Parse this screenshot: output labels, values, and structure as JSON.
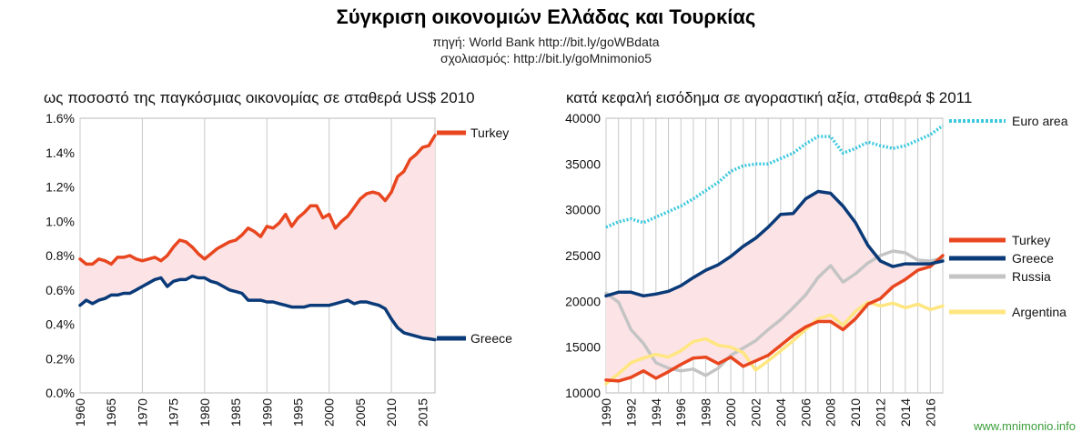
{
  "header": {
    "title": "Σύγκριση οικονομιών Ελλάδας και Τουρκίας",
    "source": "πηγή: World Bank http://bit.ly/goWBdata",
    "comments": "σχολιασμός: http://bit.ly/goMnimonio5"
  },
  "watermark": "www.mnimonio.info",
  "colors": {
    "turkey": "#e8461f",
    "greece": "#0a3a78",
    "russia": "#c4c4c4",
    "argentina": "#ffe680",
    "euro_area": "#3cc8de",
    "gap_fill": "#fce3e5",
    "grid": "#c8c8c8"
  },
  "chart_data": [
    {
      "type": "line",
      "title": "ως ποσοστό της παγκόσμιας οικονομίας σε σταθερά US$ 2010",
      "xlim": [
        1960,
        2017
      ],
      "ylim": [
        0,
        1.6
      ],
      "y_ticks": [
        "0.0%",
        "0.2%",
        "0.4%",
        "0.6%",
        "0.8%",
        "1.0%",
        "1.2%",
        "1.4%",
        "1.6%"
      ],
      "x_ticks": [
        "1960",
        "1965",
        "1970",
        "1975",
        "1980",
        "1985",
        "1990",
        "1995",
        "2000",
        "2005",
        "2010",
        "2015"
      ],
      "grid": "vertical every 10 years, horizontal none",
      "legend": "right-side labels",
      "fill_between": [
        "Turkey",
        "Greece"
      ],
      "x": [
        1960,
        1961,
        1962,
        1963,
        1964,
        1965,
        1966,
        1967,
        1968,
        1969,
        1970,
        1971,
        1972,
        1973,
        1974,
        1975,
        1976,
        1977,
        1978,
        1979,
        1980,
        1981,
        1982,
        1983,
        1984,
        1985,
        1986,
        1987,
        1988,
        1989,
        1990,
        1991,
        1992,
        1993,
        1994,
        1995,
        1996,
        1997,
        1998,
        1999,
        2000,
        2001,
        2002,
        2003,
        2004,
        2005,
        2006,
        2007,
        2008,
        2009,
        2010,
        2011,
        2012,
        2013,
        2014,
        2015,
        2016,
        2017
      ],
      "series": [
        {
          "name": "Turkey",
          "color": "#e8461f",
          "values": [
            0.78,
            0.75,
            0.75,
            0.78,
            0.77,
            0.75,
            0.79,
            0.79,
            0.8,
            0.78,
            0.77,
            0.78,
            0.79,
            0.77,
            0.8,
            0.85,
            0.89,
            0.88,
            0.85,
            0.81,
            0.78,
            0.81,
            0.84,
            0.86,
            0.88,
            0.89,
            0.92,
            0.96,
            0.94,
            0.91,
            0.97,
            0.96,
            0.99,
            1.04,
            0.97,
            1.02,
            1.05,
            1.09,
            1.09,
            1.02,
            1.04,
            0.96,
            1.0,
            1.03,
            1.08,
            1.13,
            1.16,
            1.17,
            1.16,
            1.12,
            1.17,
            1.26,
            1.29,
            1.36,
            1.39,
            1.43,
            1.44,
            1.5
          ]
        },
        {
          "name": "Greece",
          "color": "#0a3a78",
          "values": [
            0.51,
            0.54,
            0.52,
            0.54,
            0.55,
            0.57,
            0.57,
            0.58,
            0.58,
            0.6,
            0.62,
            0.64,
            0.66,
            0.67,
            0.62,
            0.65,
            0.66,
            0.66,
            0.68,
            0.67,
            0.67,
            0.65,
            0.64,
            0.62,
            0.6,
            0.59,
            0.58,
            0.54,
            0.54,
            0.54,
            0.53,
            0.53,
            0.52,
            0.51,
            0.5,
            0.5,
            0.5,
            0.51,
            0.51,
            0.51,
            0.51,
            0.52,
            0.53,
            0.54,
            0.52,
            0.53,
            0.53,
            0.52,
            0.51,
            0.49,
            0.43,
            0.38,
            0.35,
            0.34,
            0.33,
            0.32,
            0.315,
            0.31
          ]
        }
      ]
    },
    {
      "type": "line",
      "title": "κατά κεφαλή εισόδημα σε αγοραστική αξία, σταθερά $ 2011",
      "xlim": [
        1990,
        2017
      ],
      "ylim": [
        10000,
        40000
      ],
      "y_ticks": [
        "10000",
        "15000",
        "20000",
        "25000",
        "30000",
        "35000",
        "40000"
      ],
      "x_ticks": [
        "1990",
        "1992",
        "1994",
        "1996",
        "1998",
        "2000",
        "2002",
        "2004",
        "2006",
        "2008",
        "2010",
        "2012",
        "2014",
        "2016"
      ],
      "grid": "vertical every year, horizontal none",
      "legend": "right-side labels",
      "fill_between": [
        "Turkey",
        "Greece"
      ],
      "x": [
        1990,
        1991,
        1992,
        1993,
        1994,
        1995,
        1996,
        1997,
        1998,
        1999,
        2000,
        2001,
        2002,
        2003,
        2004,
        2005,
        2006,
        2007,
        2008,
        2009,
        2010,
        2011,
        2012,
        2013,
        2014,
        2015,
        2016,
        2017
      ],
      "series": [
        {
          "name": "Euro area",
          "color": "#3cc8de",
          "dash": "dotted",
          "values": [
            28100,
            28700,
            29000,
            28600,
            29200,
            29800,
            30400,
            31200,
            32100,
            33000,
            34200,
            34800,
            35000,
            35000,
            35600,
            36200,
            37200,
            38000,
            38000,
            36200,
            36700,
            37400,
            37000,
            36700,
            37000,
            37600,
            38200,
            39200
          ]
        },
        {
          "name": "Turkey",
          "color": "#e8461f",
          "values": [
            11400,
            11300,
            11700,
            12400,
            11600,
            12300,
            13100,
            13800,
            13900,
            13200,
            13900,
            12900,
            13500,
            14100,
            15200,
            16300,
            17200,
            17800,
            17800,
            16900,
            18100,
            19700,
            20300,
            21600,
            22400,
            23400,
            23800,
            25000
          ]
        },
        {
          "name": "Greece",
          "color": "#0a3a78",
          "values": [
            20600,
            21000,
            21000,
            20600,
            20800,
            21100,
            21700,
            22600,
            23400,
            24000,
            24900,
            26000,
            26900,
            28100,
            29500,
            29600,
            31200,
            32000,
            31800,
            30400,
            28600,
            26100,
            24400,
            23800,
            24100,
            24100,
            24100,
            24400
          ]
        },
        {
          "name": "Russia",
          "color": "#c4c4c4",
          "values": [
            20900,
            19900,
            16900,
            15400,
            13300,
            12700,
            12400,
            12600,
            11900,
            12700,
            14100,
            14900,
            15700,
            16900,
            18000,
            19300,
            20700,
            22600,
            23900,
            22100,
            23000,
            24200,
            25000,
            25500,
            25300,
            24500,
            24400,
            24700
          ]
        },
        {
          "name": "Argentina",
          "color": "#ffe680",
          "values": [
            11000,
            12100,
            13300,
            13800,
            14200,
            13900,
            14600,
            15600,
            15900,
            15200,
            15000,
            14400,
            12500,
            13500,
            14600,
            15700,
            16900,
            18100,
            18500,
            17400,
            18900,
            19900,
            19500,
            19800,
            19300,
            19700,
            19100,
            19500
          ]
        }
      ]
    }
  ]
}
